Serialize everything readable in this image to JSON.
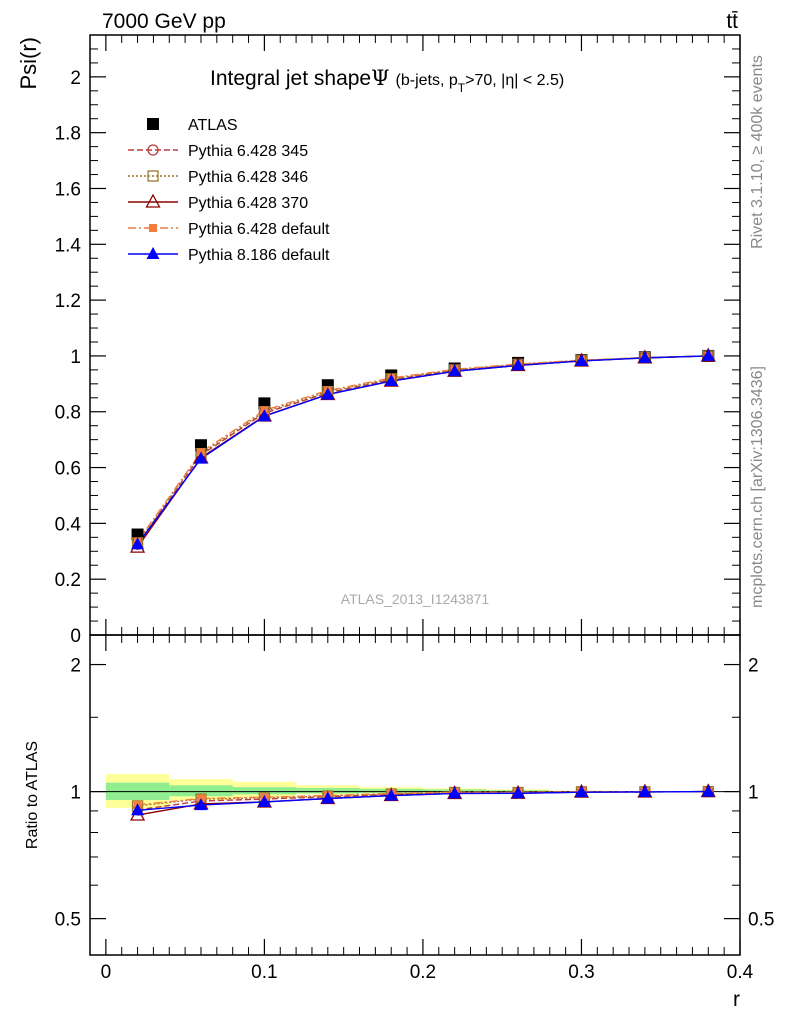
{
  "header": {
    "left": "7000 GeV pp",
    "right": "tt̄"
  },
  "side_labels": {
    "rivet": "Rivet 3.1.10, ≥ 400k events",
    "mcplots": "mcplots.cern.ch [arXiv:1306.3436]"
  },
  "watermark": "ATLAS_2013_I1243871",
  "title": {
    "main": "Integral jet shape",
    "psi": "Ψ",
    "sub1": "(b-jets, p",
    "sub_T": "T",
    "sub2": ">70, |η| < 2.5)"
  },
  "chart_data": [
    {
      "type": "line",
      "panel": "main",
      "ylabel": "Psi(r)",
      "xlabel": "r",
      "xlim": [
        -0.01,
        0.4
      ],
      "ylim": [
        0,
        2.15
      ],
      "x": [
        0.02,
        0.06,
        0.1,
        0.14,
        0.18,
        0.22,
        0.26,
        0.3,
        0.34,
        0.38
      ],
      "xticks": [
        {
          "v": 0,
          "label": "0"
        },
        {
          "v": 0.1,
          "label": "0.1"
        },
        {
          "v": 0.2,
          "label": "0.2"
        },
        {
          "v": 0.3,
          "label": "0.3"
        },
        {
          "v": 0.4,
          "label": "0.4"
        }
      ],
      "yticks": [
        {
          "v": 0,
          "label": "0"
        },
        {
          "v": 0.2,
          "label": "0.2"
        },
        {
          "v": 0.4,
          "label": "0.4"
        },
        {
          "v": 0.6,
          "label": "0.6"
        },
        {
          "v": 0.8,
          "label": "0.8"
        },
        {
          "v": 1.0,
          "label": "1"
        },
        {
          "v": 1.2,
          "label": "1.2"
        },
        {
          "v": 1.4,
          "label": "1.4"
        },
        {
          "v": 1.6,
          "label": "1.6"
        },
        {
          "v": 1.8,
          "label": "1.8"
        },
        {
          "v": 2.0,
          "label": "2"
        }
      ],
      "series": [
        {
          "name": "ATLAS",
          "key": "atlas",
          "color": "#000000",
          "marker": "square",
          "values": [
            0.36,
            0.68,
            0.83,
            0.895,
            0.93,
            0.955,
            0.975,
            0.985,
            0.995,
            1.0
          ]
        },
        {
          "name": "Pythia 6.428 345",
          "key": "p345",
          "color": "#c0393b",
          "marker": "circle-open",
          "dash": "6,3",
          "values": [
            0.325,
            0.645,
            0.795,
            0.868,
            0.915,
            0.948,
            0.968,
            0.983,
            0.993,
            1.0
          ]
        },
        {
          "name": "Pythia 6.428 346",
          "key": "p346",
          "color": "#9a7a2e",
          "marker": "square-open",
          "dash": "2,2",
          "values": [
            0.33,
            0.65,
            0.8,
            0.872,
            0.918,
            0.95,
            0.97,
            0.984,
            0.994,
            1.0
          ]
        },
        {
          "name": "Pythia 6.428 370",
          "key": "p370",
          "color": "#8b0000",
          "marker": "triangle-open",
          "values": [
            0.315,
            0.635,
            0.785,
            0.862,
            0.91,
            0.945,
            0.966,
            0.982,
            0.993,
            1.0
          ]
        },
        {
          "name": "Pythia 6.428 default",
          "key": "p6def",
          "color": "#f47c3c",
          "marker": "square-small",
          "dash": "8,3,2,3",
          "values": [
            0.335,
            0.655,
            0.805,
            0.876,
            0.921,
            0.952,
            0.971,
            0.985,
            0.994,
            1.0
          ]
        },
        {
          "name": "Pythia 8.186 default",
          "key": "p8def",
          "color": "#0000ff",
          "marker": "triangle",
          "values": [
            0.325,
            0.632,
            0.784,
            0.862,
            0.91,
            0.945,
            0.966,
            0.982,
            0.993,
            1.0
          ]
        }
      ]
    },
    {
      "type": "line",
      "panel": "ratio",
      "ylabel": "Ratio to ATLAS",
      "xlabel": "r",
      "yscale": "log",
      "xlim": [
        -0.01,
        0.4
      ],
      "ylim": [
        0.41,
        2.35
      ],
      "x": [
        0.02,
        0.06,
        0.1,
        0.14,
        0.18,
        0.22,
        0.26,
        0.3,
        0.34,
        0.38
      ],
      "yticks": [
        {
          "v": 0.5,
          "label": "0.5"
        },
        {
          "v": 1.0,
          "label": "1"
        },
        {
          "v": 2.0,
          "label": "2"
        }
      ],
      "bands": {
        "bins": [
          0.0,
          0.04,
          0.08,
          0.12,
          0.16,
          0.2,
          0.24,
          0.28,
          0.32,
          0.36,
          0.4
        ],
        "yellow": [
          [
            0.915,
            1.1
          ],
          [
            0.955,
            1.07
          ],
          [
            0.97,
            1.055
          ],
          [
            0.985,
            1.035
          ],
          [
            0.99,
            1.025
          ],
          [
            0.992,
            1.018
          ],
          [
            0.995,
            1.012
          ],
          [
            0.997,
            1.005
          ],
          [
            0.998,
            1.003
          ],
          [
            0.999,
            1.001
          ]
        ],
        "green": [
          [
            0.955,
            1.05
          ],
          [
            0.975,
            1.035
          ],
          [
            0.985,
            1.025
          ],
          [
            0.99,
            1.02
          ],
          [
            0.993,
            1.015
          ],
          [
            0.995,
            1.012
          ],
          [
            0.997,
            1.007
          ],
          [
            0.998,
            1.003
          ],
          [
            0.999,
            1.002
          ],
          [
            0.9995,
            1.0005
          ]
        ],
        "yellow_color": "#ffff99",
        "green_color": "#90ee90"
      },
      "series": [
        {
          "name": "Pythia 6.428 345",
          "key": "p345",
          "color": "#c0393b",
          "marker": "circle-open",
          "dash": "6,3",
          "values": [
            0.905,
            0.95,
            0.96,
            0.972,
            0.985,
            0.993,
            0.994,
            0.998,
            0.998,
            1.0
          ]
        },
        {
          "name": "Pythia 6.428 346",
          "key": "p346",
          "color": "#9a7a2e",
          "marker": "square-open",
          "dash": "2,2",
          "values": [
            0.925,
            0.96,
            0.966,
            0.976,
            0.987,
            0.995,
            0.995,
            0.999,
            0.999,
            1.0
          ]
        },
        {
          "name": "Pythia 6.428 370",
          "key": "p370",
          "color": "#8b0000",
          "marker": "triangle-open",
          "values": [
            0.88,
            0.935,
            0.945,
            0.963,
            0.979,
            0.99,
            0.991,
            0.997,
            0.998,
            1.0
          ]
        },
        {
          "name": "Pythia 6.428 default",
          "key": "p6def",
          "color": "#f47c3c",
          "marker": "square-small",
          "dash": "8,3,2,3",
          "values": [
            0.93,
            0.963,
            0.97,
            0.979,
            0.99,
            0.997,
            0.996,
            1.0,
            0.999,
            1.0
          ]
        },
        {
          "name": "Pythia 8.186 default",
          "key": "p8def",
          "color": "#0000ff",
          "marker": "triangle",
          "values": [
            0.903,
            0.929,
            0.945,
            0.963,
            0.978,
            0.99,
            0.991,
            0.997,
            0.998,
            1.0
          ]
        }
      ]
    }
  ]
}
